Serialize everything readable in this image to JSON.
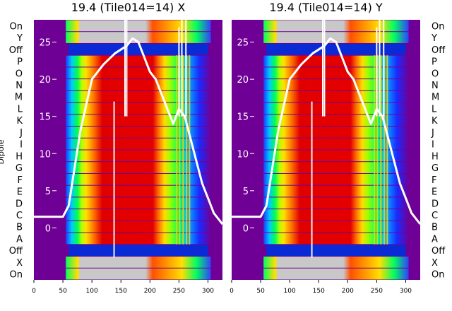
{
  "chart_data": [
    {
      "type": "heatmap",
      "title": "19.4 (Tile014=14) X",
      "ylabel": "Dipole",
      "xlim": [
        0,
        325
      ],
      "x_ticks": [
        0,
        50,
        100,
        150,
        200,
        250,
        300
      ],
      "y_row_labels": [
        "On",
        "Y",
        "Off",
        "P",
        "O",
        "N",
        "M",
        "L",
        "K",
        "J",
        "I",
        "H",
        "G",
        "F",
        "E",
        "D",
        "C",
        "B",
        "A",
        "Off",
        "X",
        "On"
      ],
      "overlay_ylim": [
        -7,
        28
      ],
      "overlay_y_ticks": [
        0,
        5,
        10,
        15,
        20,
        25
      ],
      "overlay_line": {
        "x": [
          0,
          50,
          60,
          80,
          100,
          120,
          140,
          160,
          170,
          180,
          190,
          200,
          210,
          220,
          230,
          240,
          250,
          260,
          270,
          280,
          290,
          300,
          310,
          325
        ],
        "y": [
          1.5,
          1.5,
          3,
          13,
          20,
          22,
          23.5,
          24.5,
          25.5,
          25,
          23,
          21,
          20,
          18,
          16,
          14,
          16,
          15,
          12,
          9,
          6,
          4,
          2,
          0.5
        ]
      }
    },
    {
      "type": "heatmap",
      "title": "19.4 (Tile014=14) Y",
      "xlim": [
        0,
        325
      ],
      "x_ticks": [
        0,
        50,
        100,
        150,
        200,
        250,
        300
      ],
      "y_row_labels": [
        "On",
        "Y",
        "Off",
        "P",
        "O",
        "N",
        "M",
        "L",
        "K",
        "J",
        "I",
        "H",
        "G",
        "F",
        "E",
        "D",
        "C",
        "B",
        "A",
        "Off",
        "X",
        "On"
      ],
      "overlay_ylim": [
        -7,
        28
      ],
      "overlay_y_ticks": [
        0,
        5,
        10,
        15,
        20,
        25
      ],
      "overlay_line": {
        "x": [
          0,
          50,
          60,
          80,
          100,
          120,
          140,
          160,
          170,
          180,
          190,
          200,
          210,
          220,
          230,
          240,
          250,
          260,
          270,
          280,
          290,
          300,
          310,
          325
        ],
        "y": [
          1.5,
          1.5,
          3,
          13,
          20,
          22,
          23.5,
          24.5,
          25.5,
          25,
          23,
          21,
          20,
          18,
          16,
          14,
          16,
          15,
          12,
          9,
          6,
          4,
          2,
          0.5
        ]
      }
    }
  ],
  "colors": {
    "purple": "#6f0096",
    "blue": "#0a2ad6",
    "grey": "#c8c8c8",
    "line": "#ffffff"
  }
}
